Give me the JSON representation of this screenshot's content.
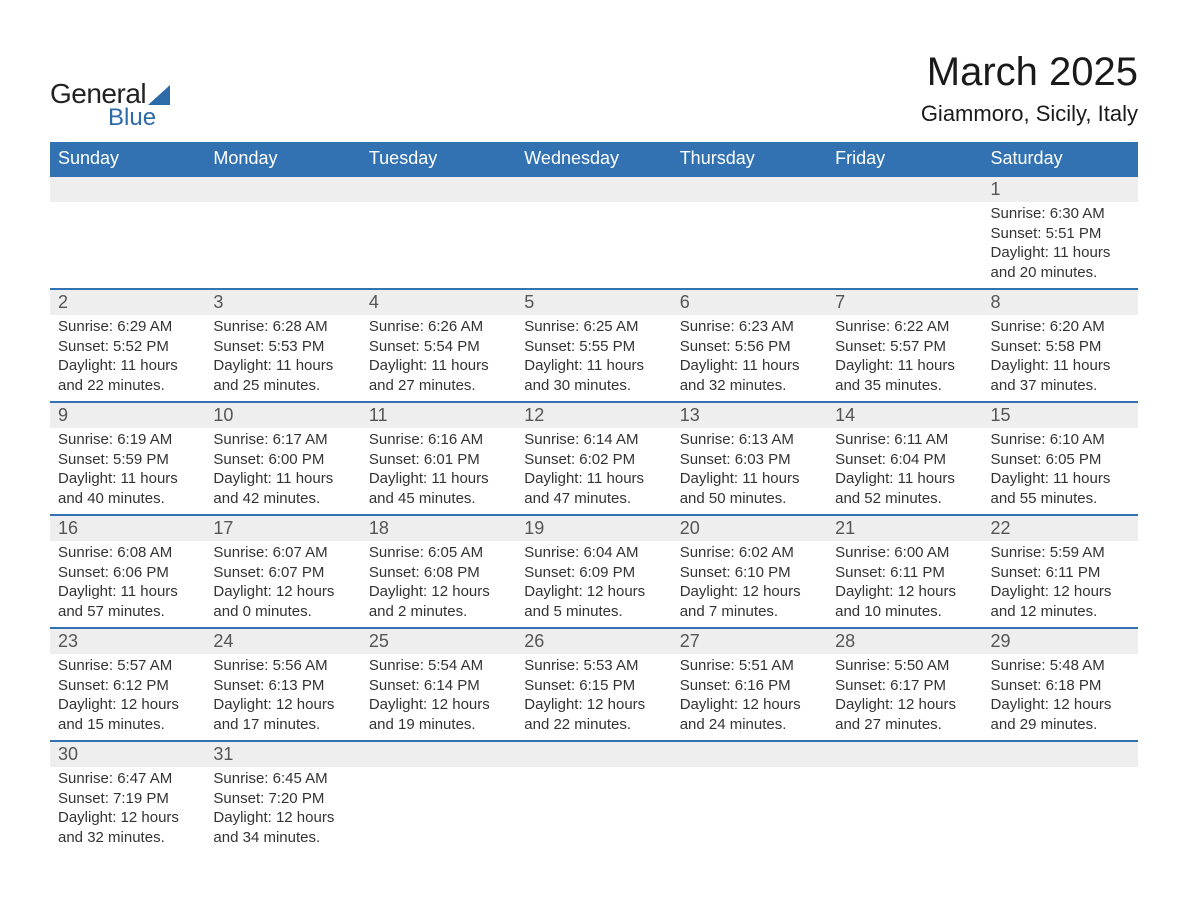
{
  "brand": {
    "name1": "General",
    "name2": "Blue"
  },
  "title": "March 2025",
  "location": "Giammoro, Sicily, Italy",
  "colors": {
    "header_bg": "#3272b2",
    "header_text": "#ffffff",
    "daynum_bg": "#eeeeee",
    "row_divider": "#3272b2",
    "text": "#333333",
    "title_text": "#1a1a1a",
    "brand_accent": "#2d6aa8"
  },
  "typography": {
    "title_fontsize": 40,
    "location_fontsize": 22,
    "weekday_fontsize": 18,
    "daynum_fontsize": 18,
    "body_fontsize": 15,
    "font_family": "Arial"
  },
  "weekdays": [
    "Sunday",
    "Monday",
    "Tuesday",
    "Wednesday",
    "Thursday",
    "Friday",
    "Saturday"
  ],
  "weeks": [
    [
      null,
      null,
      null,
      null,
      null,
      null,
      {
        "day": "1",
        "sunrise": "Sunrise: 6:30 AM",
        "sunset": "Sunset: 5:51 PM",
        "daylight1": "Daylight: 11 hours",
        "daylight2": "and 20 minutes."
      }
    ],
    [
      {
        "day": "2",
        "sunrise": "Sunrise: 6:29 AM",
        "sunset": "Sunset: 5:52 PM",
        "daylight1": "Daylight: 11 hours",
        "daylight2": "and 22 minutes."
      },
      {
        "day": "3",
        "sunrise": "Sunrise: 6:28 AM",
        "sunset": "Sunset: 5:53 PM",
        "daylight1": "Daylight: 11 hours",
        "daylight2": "and 25 minutes."
      },
      {
        "day": "4",
        "sunrise": "Sunrise: 6:26 AM",
        "sunset": "Sunset: 5:54 PM",
        "daylight1": "Daylight: 11 hours",
        "daylight2": "and 27 minutes."
      },
      {
        "day": "5",
        "sunrise": "Sunrise: 6:25 AM",
        "sunset": "Sunset: 5:55 PM",
        "daylight1": "Daylight: 11 hours",
        "daylight2": "and 30 minutes."
      },
      {
        "day": "6",
        "sunrise": "Sunrise: 6:23 AM",
        "sunset": "Sunset: 5:56 PM",
        "daylight1": "Daylight: 11 hours",
        "daylight2": "and 32 minutes."
      },
      {
        "day": "7",
        "sunrise": "Sunrise: 6:22 AM",
        "sunset": "Sunset: 5:57 PM",
        "daylight1": "Daylight: 11 hours",
        "daylight2": "and 35 minutes."
      },
      {
        "day": "8",
        "sunrise": "Sunrise: 6:20 AM",
        "sunset": "Sunset: 5:58 PM",
        "daylight1": "Daylight: 11 hours",
        "daylight2": "and 37 minutes."
      }
    ],
    [
      {
        "day": "9",
        "sunrise": "Sunrise: 6:19 AM",
        "sunset": "Sunset: 5:59 PM",
        "daylight1": "Daylight: 11 hours",
        "daylight2": "and 40 minutes."
      },
      {
        "day": "10",
        "sunrise": "Sunrise: 6:17 AM",
        "sunset": "Sunset: 6:00 PM",
        "daylight1": "Daylight: 11 hours",
        "daylight2": "and 42 minutes."
      },
      {
        "day": "11",
        "sunrise": "Sunrise: 6:16 AM",
        "sunset": "Sunset: 6:01 PM",
        "daylight1": "Daylight: 11 hours",
        "daylight2": "and 45 minutes."
      },
      {
        "day": "12",
        "sunrise": "Sunrise: 6:14 AM",
        "sunset": "Sunset: 6:02 PM",
        "daylight1": "Daylight: 11 hours",
        "daylight2": "and 47 minutes."
      },
      {
        "day": "13",
        "sunrise": "Sunrise: 6:13 AM",
        "sunset": "Sunset: 6:03 PM",
        "daylight1": "Daylight: 11 hours",
        "daylight2": "and 50 minutes."
      },
      {
        "day": "14",
        "sunrise": "Sunrise: 6:11 AM",
        "sunset": "Sunset: 6:04 PM",
        "daylight1": "Daylight: 11 hours",
        "daylight2": "and 52 minutes."
      },
      {
        "day": "15",
        "sunrise": "Sunrise: 6:10 AM",
        "sunset": "Sunset: 6:05 PM",
        "daylight1": "Daylight: 11 hours",
        "daylight2": "and 55 minutes."
      }
    ],
    [
      {
        "day": "16",
        "sunrise": "Sunrise: 6:08 AM",
        "sunset": "Sunset: 6:06 PM",
        "daylight1": "Daylight: 11 hours",
        "daylight2": "and 57 minutes."
      },
      {
        "day": "17",
        "sunrise": "Sunrise: 6:07 AM",
        "sunset": "Sunset: 6:07 PM",
        "daylight1": "Daylight: 12 hours",
        "daylight2": "and 0 minutes."
      },
      {
        "day": "18",
        "sunrise": "Sunrise: 6:05 AM",
        "sunset": "Sunset: 6:08 PM",
        "daylight1": "Daylight: 12 hours",
        "daylight2": "and 2 minutes."
      },
      {
        "day": "19",
        "sunrise": "Sunrise: 6:04 AM",
        "sunset": "Sunset: 6:09 PM",
        "daylight1": "Daylight: 12 hours",
        "daylight2": "and 5 minutes."
      },
      {
        "day": "20",
        "sunrise": "Sunrise: 6:02 AM",
        "sunset": "Sunset: 6:10 PM",
        "daylight1": "Daylight: 12 hours",
        "daylight2": "and 7 minutes."
      },
      {
        "day": "21",
        "sunrise": "Sunrise: 6:00 AM",
        "sunset": "Sunset: 6:11 PM",
        "daylight1": "Daylight: 12 hours",
        "daylight2": "and 10 minutes."
      },
      {
        "day": "22",
        "sunrise": "Sunrise: 5:59 AM",
        "sunset": "Sunset: 6:11 PM",
        "daylight1": "Daylight: 12 hours",
        "daylight2": "and 12 minutes."
      }
    ],
    [
      {
        "day": "23",
        "sunrise": "Sunrise: 5:57 AM",
        "sunset": "Sunset: 6:12 PM",
        "daylight1": "Daylight: 12 hours",
        "daylight2": "and 15 minutes."
      },
      {
        "day": "24",
        "sunrise": "Sunrise: 5:56 AM",
        "sunset": "Sunset: 6:13 PM",
        "daylight1": "Daylight: 12 hours",
        "daylight2": "and 17 minutes."
      },
      {
        "day": "25",
        "sunrise": "Sunrise: 5:54 AM",
        "sunset": "Sunset: 6:14 PM",
        "daylight1": "Daylight: 12 hours",
        "daylight2": "and 19 minutes."
      },
      {
        "day": "26",
        "sunrise": "Sunrise: 5:53 AM",
        "sunset": "Sunset: 6:15 PM",
        "daylight1": "Daylight: 12 hours",
        "daylight2": "and 22 minutes."
      },
      {
        "day": "27",
        "sunrise": "Sunrise: 5:51 AM",
        "sunset": "Sunset: 6:16 PM",
        "daylight1": "Daylight: 12 hours",
        "daylight2": "and 24 minutes."
      },
      {
        "day": "28",
        "sunrise": "Sunrise: 5:50 AM",
        "sunset": "Sunset: 6:17 PM",
        "daylight1": "Daylight: 12 hours",
        "daylight2": "and 27 minutes."
      },
      {
        "day": "29",
        "sunrise": "Sunrise: 5:48 AM",
        "sunset": "Sunset: 6:18 PM",
        "daylight1": "Daylight: 12 hours",
        "daylight2": "and 29 minutes."
      }
    ],
    [
      {
        "day": "30",
        "sunrise": "Sunrise: 6:47 AM",
        "sunset": "Sunset: 7:19 PM",
        "daylight1": "Daylight: 12 hours",
        "daylight2": "and 32 minutes."
      },
      {
        "day": "31",
        "sunrise": "Sunrise: 6:45 AM",
        "sunset": "Sunset: 7:20 PM",
        "daylight1": "Daylight: 12 hours",
        "daylight2": "and 34 minutes."
      },
      null,
      null,
      null,
      null,
      null
    ]
  ]
}
